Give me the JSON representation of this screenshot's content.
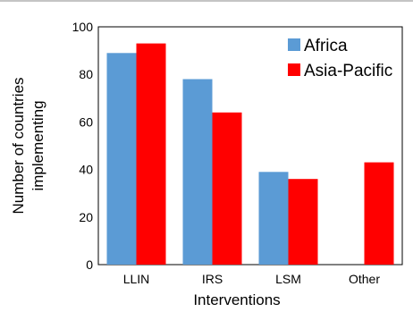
{
  "chart_data": {
    "type": "bar",
    "categories": [
      "LLIN",
      "IRS",
      "LSM",
      "Other"
    ],
    "series": [
      {
        "name": "Africa",
        "values": [
          89,
          78,
          39,
          null
        ],
        "color": "#5b9bd5"
      },
      {
        "name": "Asia-Pacific",
        "values": [
          93,
          64,
          36,
          43
        ],
        "color": "#ff0000"
      }
    ],
    "title": "",
    "xlabel": "Interventions",
    "ylabel": [
      "Number of countries",
      "implementing"
    ],
    "ylim": [
      0,
      100
    ],
    "yticks": [
      "0",
      "20",
      "40",
      "60",
      "80",
      "100"
    ],
    "grid": false,
    "legend_position": "top-right"
  }
}
